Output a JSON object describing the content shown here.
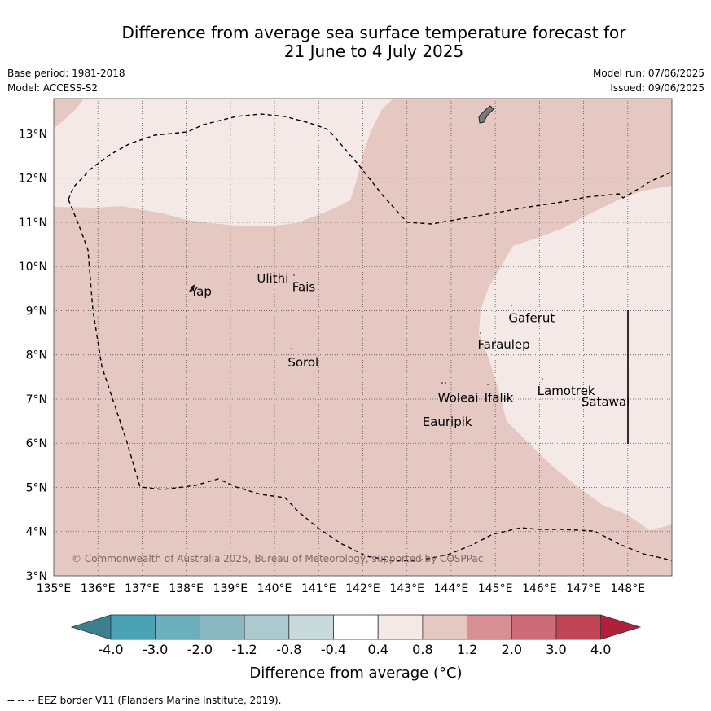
{
  "title": {
    "line1": "Difference from average sea surface temperature forecast for",
    "line2": "21 June to 4 July 2025"
  },
  "meta": {
    "base_period": "Base period: 1981-2018",
    "model": "Model: ACCESS-S2",
    "model_run": "Model run: 07/06/2025",
    "issued": "Issued: 09/06/2025"
  },
  "map": {
    "lon_range": [
      135,
      149
    ],
    "lat_range": [
      3,
      13.8
    ],
    "lon_ticks": [
      "135°E",
      "136°E",
      "137°E",
      "138°E",
      "139°E",
      "140°E",
      "141°E",
      "142°E",
      "143°E",
      "144°E",
      "145°E",
      "146°E",
      "147°E",
      "148°E"
    ],
    "lat_ticks": [
      "3°N",
      "4°N",
      "5°N",
      "6°N",
      "7°N",
      "8°N",
      "9°N",
      "10°N",
      "11°N",
      "12°N",
      "13°N"
    ],
    "fill_colors": {
      "warm_0_4_0_8": "#f5e9e7",
      "warm_0_8_1_2": "#e6c8c3"
    },
    "places": [
      {
        "name": "Yap",
        "lon": 138.1,
        "lat": 9.45
      },
      {
        "name": "Ulithi",
        "lon": 139.6,
        "lat": 9.75
      },
      {
        "name": "Fais",
        "lon": 140.4,
        "lat": 9.55
      },
      {
        "name": "Sorol",
        "lon": 140.3,
        "lat": 7.85
      },
      {
        "name": "Gaferut",
        "lon": 145.3,
        "lat": 8.85
      },
      {
        "name": "Faraulep",
        "lon": 144.6,
        "lat": 8.25
      },
      {
        "name": "Woleai",
        "lon": 143.7,
        "lat": 7.05
      },
      {
        "name": "Ifalik",
        "lon": 144.75,
        "lat": 7.05
      },
      {
        "name": "Lamotrek",
        "lon": 145.95,
        "lat": 7.2
      },
      {
        "name": "Satawal",
        "lon": 146.95,
        "lat": 6.95
      },
      {
        "name": "Eauripik",
        "lon": 143.35,
        "lat": 6.5
      }
    ],
    "copyright": "© Commonwealth of Australia 2025, Bureau of Meteorology, supported by COSPPac"
  },
  "colorbar": {
    "colors": [
      "#3b808f",
      "#4aa3b5",
      "#6bb0bd",
      "#8ab9c4",
      "#abcad0",
      "#c9dadd",
      "#ffffff",
      "#f5e9e7",
      "#e6c8c3",
      "#d88f94",
      "#cf6b77",
      "#c04656",
      "#b0203a"
    ],
    "labels": [
      "-4.0",
      "-3.0",
      "-2.0",
      "-1.2",
      "-0.8",
      "-0.4",
      "0.4",
      "0.8",
      "1.2",
      "2.0",
      "3.0",
      "4.0"
    ],
    "title": "Difference from average (°C)"
  },
  "footer": "-- -- -- EEZ border V11 (Flanders Marine Institute, 2019)."
}
